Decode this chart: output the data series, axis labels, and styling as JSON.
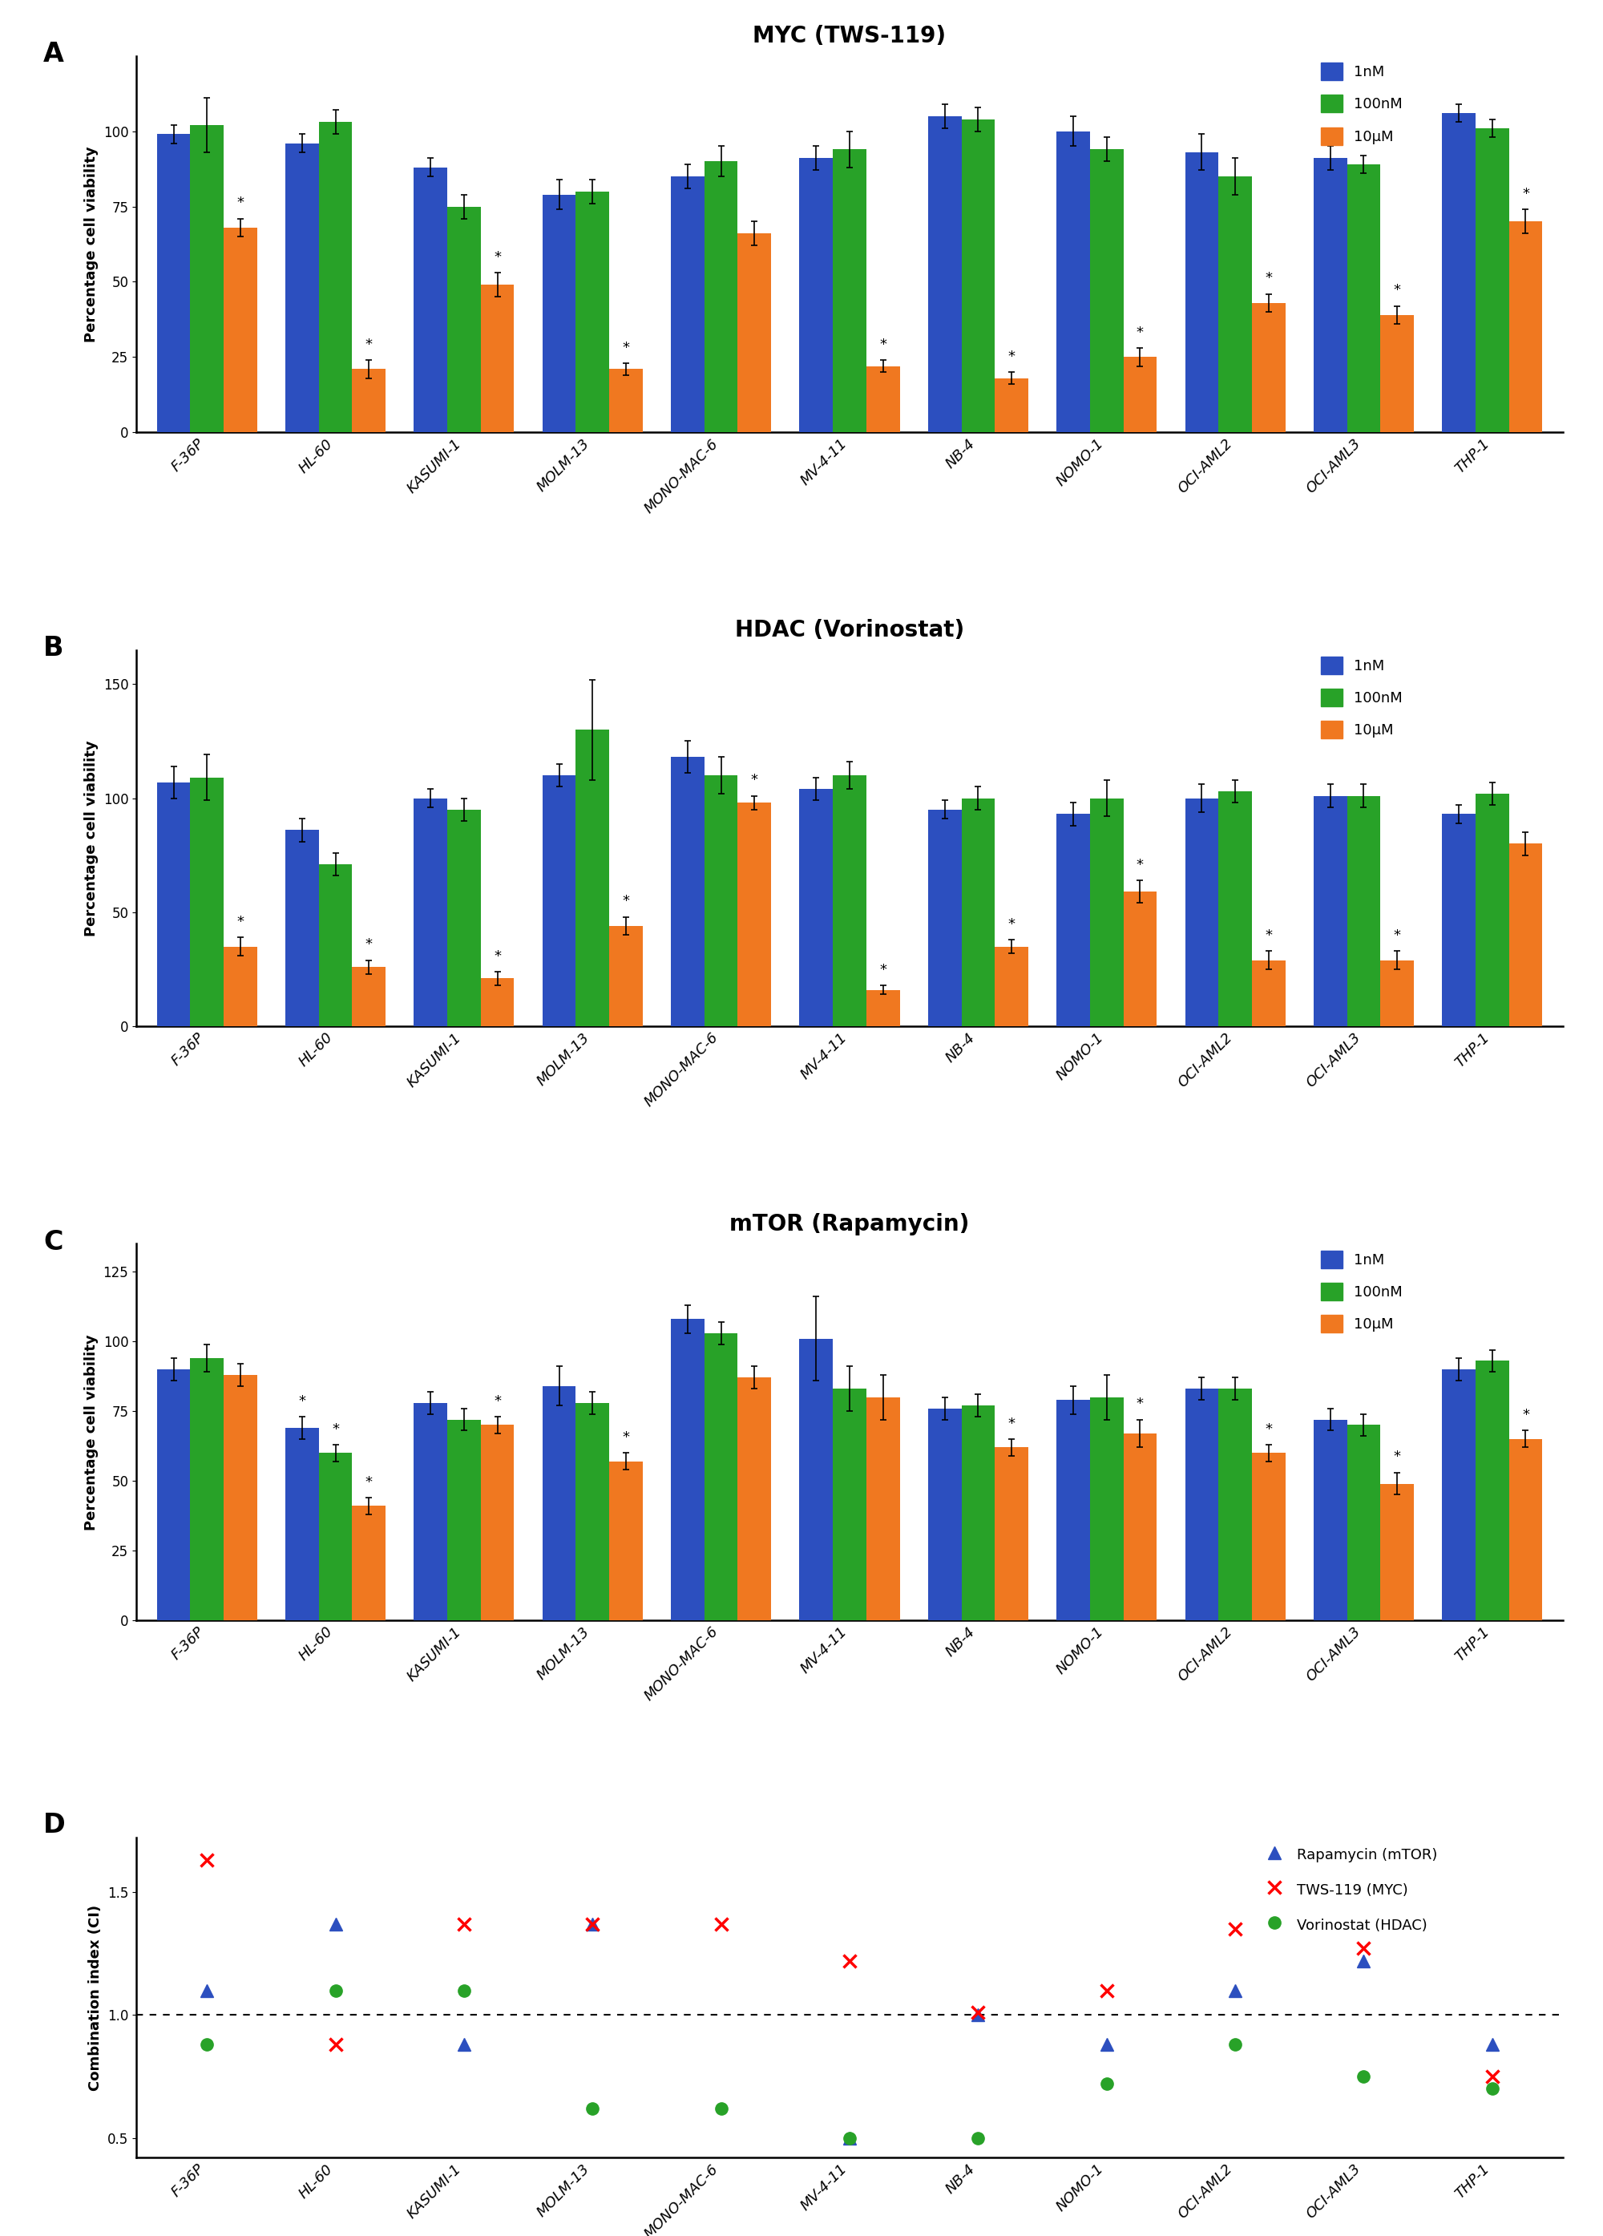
{
  "categories": [
    "F-36P",
    "HL-60",
    "KASUMI-1",
    "MOLM-13",
    "MONO-MAC-6",
    "MV-4-11",
    "NB-4",
    "NOMO-1",
    "OCI-AML2",
    "OCI-AML3",
    "THP-1"
  ],
  "panel_A": {
    "title": "MYC (TWS-119)",
    "ylabel": "Percentage cell viability",
    "ylim": [
      0,
      125
    ],
    "yticks": [
      0,
      25,
      50,
      75,
      100
    ],
    "blue_vals": [
      99,
      96,
      88,
      79,
      85,
      91,
      105,
      100,
      93,
      91,
      106
    ],
    "green_vals": [
      102,
      103,
      75,
      80,
      90,
      94,
      104,
      94,
      85,
      89,
      101
    ],
    "orange_vals": [
      68,
      21,
      49,
      21,
      66,
      22,
      18,
      25,
      43,
      39,
      70
    ],
    "blue_err": [
      3,
      3,
      3,
      5,
      4,
      4,
      4,
      5,
      6,
      4,
      3
    ],
    "green_err": [
      9,
      4,
      4,
      4,
      5,
      6,
      4,
      4,
      6,
      3,
      3
    ],
    "orange_err": [
      3,
      3,
      4,
      2,
      4,
      2,
      2,
      3,
      3,
      3,
      4
    ],
    "star_blue": [
      false,
      false,
      false,
      false,
      false,
      false,
      false,
      false,
      false,
      false,
      false
    ],
    "star_green": [
      false,
      false,
      false,
      false,
      false,
      false,
      false,
      false,
      false,
      false,
      false
    ],
    "star_orange": [
      true,
      true,
      true,
      true,
      false,
      true,
      true,
      true,
      true,
      true,
      true
    ]
  },
  "panel_B": {
    "title": "HDAC (Vorinostat)",
    "ylabel": "Percentage cell viability",
    "ylim": [
      0,
      165
    ],
    "yticks": [
      0,
      50,
      100,
      150
    ],
    "blue_vals": [
      107,
      86,
      100,
      110,
      118,
      104,
      95,
      93,
      100,
      101,
      93
    ],
    "green_vals": [
      109,
      71,
      95,
      130,
      110,
      110,
      100,
      100,
      103,
      101,
      102
    ],
    "orange_vals": [
      35,
      26,
      21,
      44,
      98,
      16,
      35,
      59,
      29,
      29,
      80
    ],
    "blue_err": [
      7,
      5,
      4,
      5,
      7,
      5,
      4,
      5,
      6,
      5,
      4
    ],
    "green_err": [
      10,
      5,
      5,
      22,
      8,
      6,
      5,
      8,
      5,
      5,
      5
    ],
    "orange_err": [
      4,
      3,
      3,
      4,
      3,
      2,
      3,
      5,
      4,
      4,
      5
    ],
    "star_blue": [
      false,
      false,
      false,
      false,
      false,
      false,
      false,
      false,
      false,
      false,
      false
    ],
    "star_green": [
      false,
      false,
      false,
      false,
      false,
      false,
      false,
      false,
      false,
      false,
      false
    ],
    "star_orange": [
      true,
      true,
      true,
      true,
      true,
      true,
      true,
      true,
      true,
      true,
      false
    ]
  },
  "panel_C": {
    "title": "mTOR (Rapamycin)",
    "ylabel": "Percentage cell viability",
    "ylim": [
      0,
      135
    ],
    "yticks": [
      0,
      25,
      50,
      75,
      100,
      125
    ],
    "blue_vals": [
      90,
      69,
      78,
      84,
      108,
      101,
      76,
      79,
      83,
      72,
      90
    ],
    "green_vals": [
      94,
      60,
      72,
      78,
      103,
      83,
      77,
      80,
      83,
      70,
      93
    ],
    "orange_vals": [
      88,
      41,
      70,
      57,
      87,
      80,
      62,
      67,
      60,
      49,
      65
    ],
    "blue_err": [
      4,
      4,
      4,
      7,
      5,
      15,
      4,
      5,
      4,
      4,
      4
    ],
    "green_err": [
      5,
      3,
      4,
      4,
      4,
      8,
      4,
      8,
      4,
      4,
      4
    ],
    "orange_err": [
      4,
      3,
      3,
      3,
      4,
      8,
      3,
      5,
      3,
      4,
      3
    ],
    "star_blue": [
      false,
      true,
      false,
      false,
      false,
      false,
      false,
      false,
      false,
      false,
      false
    ],
    "star_green": [
      false,
      true,
      false,
      false,
      false,
      false,
      false,
      false,
      false,
      false,
      false
    ],
    "star_orange": [
      false,
      true,
      true,
      true,
      false,
      false,
      true,
      true,
      true,
      true,
      true
    ]
  },
  "panel_D": {
    "ylabel": "Combination index (CI)",
    "ylim": [
      0.42,
      1.72
    ],
    "yticks": [
      0.5,
      1.0,
      1.5
    ],
    "dotted_line": 1.0,
    "rapamycin_vals": [
      1.1,
      1.37,
      0.88,
      1.37,
      null,
      0.5,
      1.0,
      0.88,
      1.1,
      1.22,
      0.88
    ],
    "tws119_vals": [
      1.63,
      0.88,
      1.37,
      1.37,
      1.37,
      1.22,
      1.01,
      1.1,
      1.35,
      1.27,
      0.75
    ],
    "vorinostat_vals": [
      0.88,
      1.1,
      1.1,
      0.62,
      0.62,
      0.5,
      0.5,
      0.72,
      0.88,
      0.75,
      0.7
    ]
  },
  "blue_color": "#2C4FBF",
  "green_color": "#28A228",
  "orange_color": "#F07820",
  "rap_color": "#2C4FBF",
  "tws_color": "#FF0000",
  "vor_color": "#28A228",
  "bar_width": 0.26,
  "legend_labels": [
    "1nM",
    "100nM",
    "10μM"
  ]
}
